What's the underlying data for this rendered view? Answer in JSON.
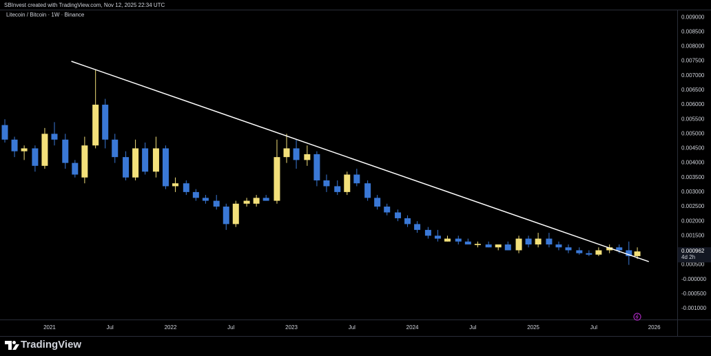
{
  "header": {
    "credit": "SBInvest created with TradingView.com, Nov 12, 2025 22:34 UTC"
  },
  "chart_data": {
    "type": "candlestick",
    "title": "Litecoin / Bitcoin · 1W · Binance",
    "x": [
      2020.63,
      2020.71,
      2020.79,
      2020.88,
      2020.96,
      2021.04,
      2021.13,
      2021.21,
      2021.29,
      2021.38,
      2021.46,
      2021.54,
      2021.63,
      2021.71,
      2021.79,
      2021.88,
      2021.96,
      2022.04,
      2022.13,
      2022.21,
      2022.29,
      2022.38,
      2022.46,
      2022.54,
      2022.63,
      2022.71,
      2022.79,
      2022.88,
      2022.96,
      2023.04,
      2023.13,
      2023.21,
      2023.29,
      2023.38,
      2023.46,
      2023.54,
      2023.63,
      2023.71,
      2023.79,
      2023.88,
      2023.96,
      2024.04,
      2024.13,
      2024.21,
      2024.29,
      2024.38,
      2024.46,
      2024.54,
      2024.63,
      2024.71,
      2024.79,
      2024.88,
      2024.96,
      2025.04,
      2025.13,
      2025.21,
      2025.29,
      2025.38,
      2025.46,
      2025.54,
      2025.63,
      2025.71,
      2025.79,
      2025.86
    ],
    "open": [
      0.0053,
      0.0048,
      0.0044,
      0.0045,
      0.0039,
      0.005,
      0.0048,
      0.004,
      0.0035,
      0.0046,
      0.006,
      0.0048,
      0.0042,
      0.0035,
      0.0045,
      0.0037,
      0.0045,
      0.0032,
      0.0033,
      0.003,
      0.0028,
      0.0027,
      0.0025,
      0.0019,
      0.0026,
      0.0026,
      0.0028,
      0.0027,
      0.0042,
      0.0045,
      0.0041,
      0.0043,
      0.0034,
      0.0032,
      0.003,
      0.0036,
      0.0033,
      0.0028,
      0.0025,
      0.0023,
      0.0021,
      0.0019,
      0.0017,
      0.0015,
      0.0013,
      0.0014,
      0.0013,
      0.00118,
      0.0012,
      0.0011,
      0.0012,
      0.001,
      0.0014,
      0.0012,
      0.0014,
      0.0012,
      0.0011,
      0.001,
      0.0009,
      0.00085,
      0.001,
      0.0011,
      0.001,
      0.0008
    ],
    "high": [
      0.0055,
      0.0049,
      0.0046,
      0.0046,
      0.0052,
      0.0054,
      0.005,
      0.0041,
      0.0049,
      0.0072,
      0.0062,
      0.005,
      0.0044,
      0.0048,
      0.0047,
      0.0049,
      0.0046,
      0.0035,
      0.0034,
      0.0031,
      0.0029,
      0.0029,
      0.0026,
      0.0027,
      0.0028,
      0.0029,
      0.0029,
      0.0048,
      0.005,
      0.0048,
      0.0046,
      0.0044,
      0.0036,
      0.0034,
      0.0037,
      0.0038,
      0.0034,
      0.0029,
      0.0026,
      0.0024,
      0.0022,
      0.002,
      0.0018,
      0.0017,
      0.0015,
      0.0015,
      0.0014,
      0.0013,
      0.0013,
      0.0012,
      0.0013,
      0.0015,
      0.0015,
      0.0016,
      0.0016,
      0.0013,
      0.0012,
      0.0011,
      0.001,
      0.0011,
      0.0012,
      0.0012,
      0.0013,
      0.0011
    ],
    "low": [
      0.0047,
      0.0042,
      0.0041,
      0.0037,
      0.0038,
      0.0046,
      0.0038,
      0.0035,
      0.0033,
      0.0045,
      0.0045,
      0.004,
      0.0034,
      0.0034,
      0.0036,
      0.0035,
      0.0031,
      0.003,
      0.0029,
      0.0027,
      0.0026,
      0.0024,
      0.0017,
      0.0018,
      0.0025,
      0.0025,
      0.0027,
      0.0026,
      0.004,
      0.0038,
      0.0039,
      0.0032,
      0.003,
      0.0029,
      0.0029,
      0.0032,
      0.0027,
      0.0024,
      0.0022,
      0.002,
      0.0018,
      0.0016,
      0.0014,
      0.0013,
      0.0013,
      0.0012,
      0.0012,
      0.0011,
      0.0011,
      0.001,
      0.001,
      0.0009,
      0.0011,
      0.0011,
      0.0011,
      0.001,
      0.0009,
      0.00085,
      0.0008,
      0.0008,
      0.0009,
      0.0009,
      0.0005,
      0.0007
    ],
    "close": [
      0.0048,
      0.0044,
      0.0045,
      0.0039,
      0.005,
      0.0048,
      0.004,
      0.0036,
      0.0046,
      0.006,
      0.0048,
      0.0042,
      0.0035,
      0.0045,
      0.0037,
      0.0045,
      0.0032,
      0.0033,
      0.003,
      0.0028,
      0.0027,
      0.0025,
      0.0019,
      0.0026,
      0.0027,
      0.0028,
      0.0027,
      0.0042,
      0.0045,
      0.0041,
      0.0043,
      0.0034,
      0.0032,
      0.003,
      0.0036,
      0.0033,
      0.0028,
      0.0025,
      0.0023,
      0.0021,
      0.0019,
      0.0017,
      0.0015,
      0.0014,
      0.0014,
      0.0013,
      0.0012,
      0.00122,
      0.0011,
      0.0012,
      0.001,
      0.0014,
      0.0012,
      0.0014,
      0.0012,
      0.0011,
      0.001,
      0.0009,
      0.00085,
      0.001,
      0.0011,
      0.001,
      0.0008,
      0.00096
    ],
    "up_color": "#f3e07a",
    "down_color": "#3a78d6",
    "xlim": [
      2020.59,
      2026.19
    ],
    "ylim": [
      -0.00133,
      0.00924
    ],
    "xticks": [
      2021,
      {
        "value": 2021.5,
        "label": "Jul"
      },
      2022,
      {
        "value": 2022.5,
        "label": "Jul"
      },
      2023,
      {
        "value": 2023.5,
        "label": "Jul"
      },
      2024,
      {
        "value": 2024.5,
        "label": "Jul"
      },
      2025,
      {
        "value": 2025.5,
        "label": "Jul"
      },
      2026
    ],
    "yticks": [
      {
        "value": 0.009,
        "label": "0.009000"
      },
      {
        "value": 0.0085,
        "label": "0.008500"
      },
      {
        "value": 0.008,
        "label": "0.008000"
      },
      {
        "value": 0.0075,
        "label": "0.007500"
      },
      {
        "value": 0.007,
        "label": "0.007000"
      },
      {
        "value": 0.0065,
        "label": "0.006500"
      },
      {
        "value": 0.006,
        "label": "0.006000"
      },
      {
        "value": 0.0055,
        "label": "0.005500"
      },
      {
        "value": 0.005,
        "label": "0.005000"
      },
      {
        "value": 0.0045,
        "label": "0.004500"
      },
      {
        "value": 0.004,
        "label": "0.004000"
      },
      {
        "value": 0.0035,
        "label": "0.003500"
      },
      {
        "value": 0.003,
        "label": "0.003000"
      },
      {
        "value": 0.0025,
        "label": "0.002500"
      },
      {
        "value": 0.002,
        "label": "0.002000"
      },
      {
        "value": 0.0015,
        "label": "0.001500"
      },
      {
        "value": 0.0005,
        "label": "0.000500"
      },
      {
        "value": 0,
        "label": "-0.000000"
      },
      {
        "value": -0.0005,
        "label": "-0.000500"
      },
      {
        "value": -0.001,
        "label": "-0.001000"
      }
    ],
    "trendline": {
      "x": [
        2021.18,
        2025.955
      ],
      "y": [
        0.00749,
        0.00061
      ],
      "color": "#ffffff"
    },
    "last_price": 0.000962,
    "countdown": "4d 2h",
    "grid": false
  },
  "footer": {
    "brand": "TradingView"
  }
}
